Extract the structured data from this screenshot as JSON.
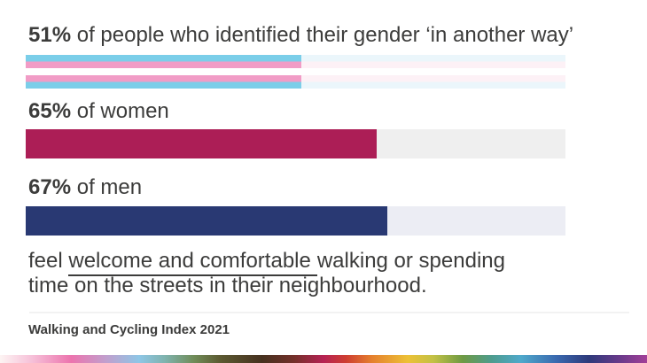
{
  "chart_data": {
    "type": "bar",
    "categories": [
      "people who identified their gender ‘in another way’",
      "women",
      "men"
    ],
    "values": [
      51,
      65,
      67
    ],
    "unit": "%",
    "xlim": [
      0,
      100
    ],
    "title": "feel welcome and comfortable walking or spending time on the streets in their neighbourhood.",
    "source": "Walking and Cycling Index 2021",
    "legend": "none",
    "grid": "off"
  },
  "stats": [
    {
      "pct": "51%",
      "label": " of people who identified their gender ‘in another way’"
    },
    {
      "pct": "65%",
      "label": " of women"
    },
    {
      "pct": "67%",
      "label": " of men"
    }
  ],
  "caption": {
    "line1_pre": "feel ",
    "line1_underline": "welcome and comfortable",
    "line1_post": "walking or spending",
    "line2": "time on the streets in their neighbourhood."
  },
  "source_label": "Walking and Cycling Index 2021",
  "colors": {
    "background": "#FFFFFF",
    "text": "#3C3C3B",
    "women_bar": "#AC1E56",
    "women_track": "#EFEFEF",
    "men_bar": "#293973",
    "men_track": "#ECEDF4",
    "trans_blue": "#7BCEE9",
    "trans_pink": "#F19CC6",
    "trans_white": "#FFFFFF",
    "trans_track_blue": "#EBF6FB",
    "trans_track_pink": "#FDF1F6",
    "divider": "#F2F2F2",
    "rainbow": [
      {
        "c": "#FDF4F3",
        "p": 0
      },
      {
        "c": "#F6C0D8",
        "p": 5
      },
      {
        "c": "#EC74AE",
        "p": 11
      },
      {
        "c": "#C0A0CE",
        "p": 16.5
      },
      {
        "c": "#8EC6E6",
        "p": 21.5
      },
      {
        "c": "#7FB3AE",
        "p": 25.5
      },
      {
        "c": "#708C58",
        "p": 30
      },
      {
        "c": "#5C5A31",
        "p": 34
      },
      {
        "c": "#46311F",
        "p": 40.5
      },
      {
        "c": "#74302A",
        "p": 45.5
      },
      {
        "c": "#B62254",
        "p": 50
      },
      {
        "c": "#CE3D31",
        "p": 53.5
      },
      {
        "c": "#E5802E",
        "p": 57.5
      },
      {
        "c": "#EDC136",
        "p": 63
      },
      {
        "c": "#C2C145",
        "p": 67
      },
      {
        "c": "#6E9A44",
        "p": 71.5
      },
      {
        "c": "#4E9C8E",
        "p": 76
      },
      {
        "c": "#4FA9CB",
        "p": 80.5
      },
      {
        "c": "#3A69AF",
        "p": 86
      },
      {
        "c": "#2E3A7B",
        "p": 91
      },
      {
        "c": "#6C3A8B",
        "p": 96
      },
      {
        "c": "#A23F98",
        "p": 100
      }
    ]
  }
}
